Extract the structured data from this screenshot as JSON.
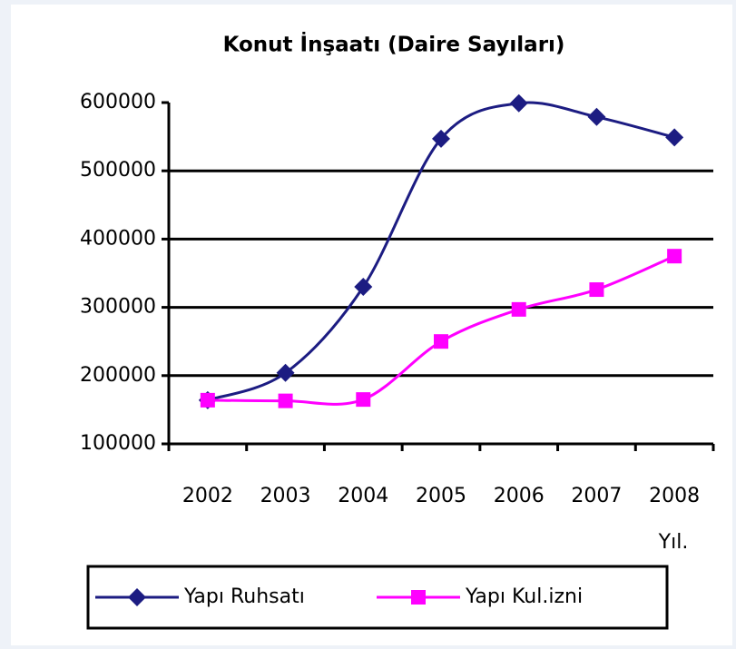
{
  "chart_data": {
    "type": "line",
    "title": "Konut İnşaatı (Daire Sayıları)",
    "x_label": "Yıl.",
    "categories": [
      "2002",
      "2003",
      "2004",
      "2005",
      "2006",
      "2007",
      "2008"
    ],
    "series": [
      {
        "name": "Yapı Ruhsatı",
        "color": "#1c1c82",
        "marker": "diamond",
        "values": [
          164000,
          204000,
          330000,
          547000,
          599000,
          579000,
          549000
        ]
      },
      {
        "name": "Yapı Kul.izni",
        "color": "#ff00ff",
        "marker": "square",
        "values": [
          164000,
          163000,
          165000,
          250000,
          297000,
          326000,
          375000
        ]
      }
    ],
    "ylim": [
      100000,
      600000
    ],
    "yticks": [
      100000,
      200000,
      300000,
      400000,
      500000,
      600000
    ],
    "grid": true,
    "legend": "bottom"
  }
}
